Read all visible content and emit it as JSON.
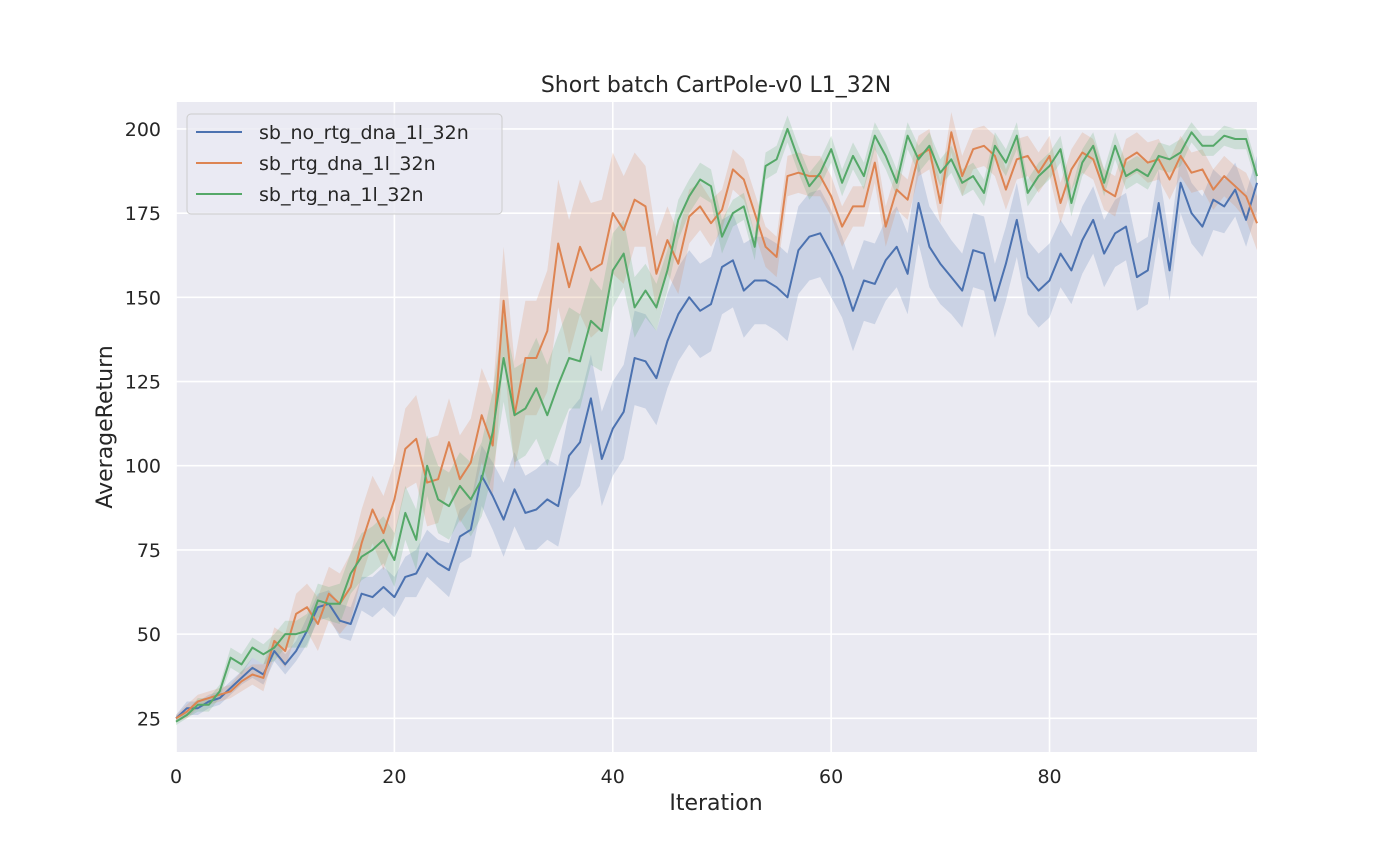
{
  "chart_data": {
    "type": "line",
    "title": "Short batch CartPole-v0 L1_32N",
    "xlabel": "Iteration",
    "ylabel": "AverageReturn",
    "xlim": [
      0,
      99
    ],
    "ylim": [
      15,
      208
    ],
    "xticks": [
      0,
      20,
      40,
      60,
      80
    ],
    "yticks": [
      25,
      50,
      75,
      100,
      125,
      150,
      175,
      200
    ],
    "grid": true,
    "legend_position": "upper-left",
    "background_color": "#eaeaf2",
    "band_note": "shaded confidence band around each line",
    "series": [
      {
        "name": "sb_no_rtg_dna_1l_32n",
        "color": "#4c72b0",
        "values": [
          25,
          28,
          28,
          30,
          31,
          34,
          37,
          40,
          38,
          45,
          41,
          45,
          51,
          58,
          59,
          54,
          53,
          62,
          61,
          64,
          61,
          67,
          68,
          74,
          71,
          69,
          79,
          81,
          97,
          91,
          84,
          93,
          86,
          87,
          90,
          88,
          103,
          107,
          120,
          102,
          111,
          116,
          132,
          131,
          126,
          137,
          145,
          150,
          146,
          148,
          159,
          161,
          152,
          155,
          155,
          153,
          150,
          164,
          168,
          169,
          163,
          156,
          146,
          155,
          154,
          161,
          165,
          157,
          178,
          165,
          160,
          156,
          152,
          164,
          163,
          149,
          160,
          173,
          156,
          152,
          155,
          163,
          158,
          167,
          173,
          163,
          169,
          171,
          156,
          158,
          178,
          158,
          184,
          175,
          171,
          179,
          177,
          182,
          173,
          184
        ],
        "band": [
          1,
          2,
          2,
          2,
          2,
          2,
          2,
          3,
          3,
          3,
          3,
          3,
          4,
          4,
          4,
          5,
          5,
          5,
          6,
          6,
          6,
          6,
          7,
          7,
          7,
          8,
          8,
          8,
          9,
          10,
          11,
          11,
          11,
          12,
          12,
          12,
          13,
          13,
          13,
          14,
          14,
          14,
          14,
          14,
          14,
          14,
          14,
          14,
          14,
          14,
          14,
          14,
          14,
          13,
          13,
          13,
          13,
          13,
          13,
          13,
          13,
          12,
          12,
          12,
          12,
          12,
          12,
          12,
          12,
          12,
          12,
          11,
          11,
          11,
          11,
          11,
          11,
          11,
          11,
          11,
          11,
          10,
          10,
          10,
          10,
          10,
          10,
          10,
          10,
          10,
          10,
          9,
          9,
          9,
          9,
          9,
          8,
          8,
          8,
          8
        ]
      },
      {
        "name": "sb_rtg_dna_1l_32n",
        "color": "#dd8452",
        "values": [
          25,
          27,
          30,
          31,
          32,
          33,
          36,
          38,
          37,
          48,
          45,
          56,
          58,
          53,
          62,
          59,
          64,
          77,
          87,
          80,
          90,
          105,
          108,
          95,
          96,
          107,
          96,
          101,
          115,
          106,
          149,
          115,
          132,
          132,
          140,
          166,
          153,
          165,
          158,
          160,
          175,
          170,
          179,
          177,
          157,
          167,
          160,
          174,
          177,
          172,
          176,
          188,
          185,
          175,
          165,
          162,
          186,
          187,
          186,
          186,
          180,
          171,
          177,
          177,
          190,
          171,
          182,
          179,
          192,
          194,
          178,
          199,
          186,
          194,
          195,
          192,
          182,
          191,
          192,
          187,
          192,
          178,
          188,
          193,
          191,
          182,
          180,
          191,
          193,
          190,
          191,
          185,
          192,
          187,
          188,
          182,
          186,
          183,
          180,
          172
        ],
        "band": [
          1,
          2,
          2,
          2,
          2,
          2,
          3,
          3,
          4,
          4,
          5,
          6,
          7,
          8,
          8,
          9,
          10,
          10,
          10,
          11,
          11,
          12,
          13,
          13,
          13,
          13,
          13,
          13,
          14,
          15,
          16,
          16,
          17,
          17,
          18,
          19,
          20,
          20,
          20,
          19,
          18,
          16,
          14,
          12,
          11,
          10,
          9,
          8,
          7,
          7,
          6,
          6,
          6,
          6,
          6,
          6,
          6,
          6,
          6,
          6,
          6,
          6,
          6,
          6,
          6,
          6,
          6,
          6,
          6,
          6,
          6,
          6,
          6,
          6,
          6,
          6,
          6,
          6,
          6,
          6,
          6,
          6,
          6,
          6,
          6,
          6,
          6,
          6,
          6,
          6,
          6,
          6,
          6,
          6,
          6,
          6,
          6,
          6,
          7,
          8
        ]
      },
      {
        "name": "sb_rtg_na_1l_32n",
        "color": "#55a868",
        "values": [
          24,
          26,
          29,
          29,
          33,
          43,
          41,
          46,
          44,
          46,
          50,
          50,
          51,
          60,
          59,
          59,
          68,
          73,
          75,
          78,
          72,
          86,
          78,
          100,
          90,
          88,
          94,
          90,
          96,
          110,
          132,
          115,
          117,
          123,
          115,
          124,
          132,
          131,
          143,
          140,
          158,
          163,
          147,
          152,
          147,
          158,
          173,
          180,
          185,
          183,
          168,
          175,
          177,
          165,
          189,
          191,
          200,
          191,
          183,
          187,
          194,
          184,
          192,
          186,
          198,
          192,
          184,
          198,
          191,
          195,
          187,
          191,
          184,
          186,
          181,
          195,
          190,
          198,
          181,
          186,
          189,
          194,
          178,
          190,
          195,
          184,
          195,
          186,
          188,
          186,
          192,
          191,
          193,
          199,
          195,
          195,
          198,
          197,
          197,
          186
        ],
        "band": [
          1,
          1,
          2,
          2,
          2,
          3,
          3,
          3,
          3,
          4,
          4,
          4,
          5,
          5,
          5,
          6,
          6,
          7,
          7,
          7,
          8,
          8,
          9,
          9,
          10,
          10,
          10,
          11,
          11,
          12,
          13,
          14,
          14,
          15,
          15,
          15,
          15,
          14,
          13,
          12,
          11,
          10,
          9,
          8,
          7,
          6,
          6,
          5,
          5,
          5,
          5,
          4,
          4,
          4,
          4,
          4,
          4,
          4,
          4,
          4,
          4,
          4,
          4,
          4,
          4,
          4,
          4,
          4,
          4,
          4,
          4,
          4,
          4,
          4,
          4,
          4,
          4,
          4,
          4,
          4,
          4,
          4,
          4,
          4,
          4,
          4,
          4,
          4,
          4,
          4,
          4,
          4,
          4,
          3,
          3,
          3,
          3,
          3,
          3,
          3
        ]
      }
    ]
  }
}
